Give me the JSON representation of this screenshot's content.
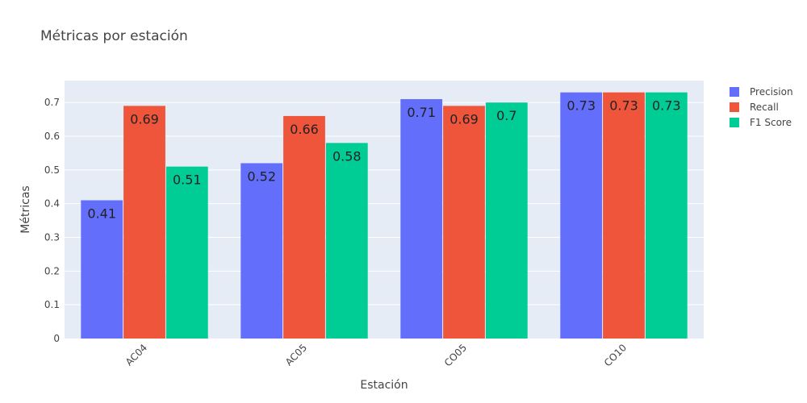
{
  "chart_data": {
    "type": "bar",
    "title": "Métricas por estación",
    "xlabel": "Estación",
    "ylabel": "Métricas",
    "categories": [
      "AC04",
      "AC05",
      "CO05",
      "CO10"
    ],
    "series": [
      {
        "name": "Precision",
        "color": "#636efa",
        "values": [
          0.41,
          0.52,
          0.71,
          0.73
        ]
      },
      {
        "name": "Recall",
        "color": "#ef553b",
        "values": [
          0.69,
          0.66,
          0.69,
          0.73
        ]
      },
      {
        "name": "F1 Score",
        "color": "#00cc96",
        "values": [
          0.51,
          0.58,
          0.7,
          0.73
        ]
      }
    ],
    "ylim": [
      0,
      0.765
    ],
    "yticks": [
      0,
      0.1,
      0.2,
      0.3,
      0.4,
      0.5,
      0.6,
      0.7
    ],
    "grid": true,
    "legend_position": "top-right",
    "plot_background": "#e5ecf6"
  }
}
